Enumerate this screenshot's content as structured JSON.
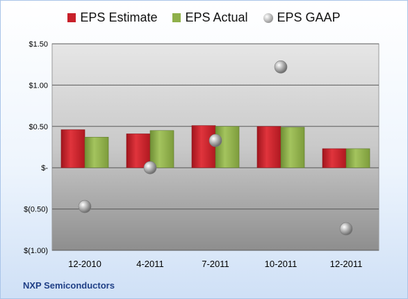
{
  "chart_data": {
    "type": "bar",
    "categories": [
      "12-2010",
      "4-2011",
      "7-2011",
      "10-2011",
      "12-2011"
    ],
    "series": [
      {
        "name": "EPS Estimate",
        "kind": "bar",
        "color": "#c8202a",
        "values": [
          0.46,
          0.41,
          0.51,
          0.5,
          0.23
        ]
      },
      {
        "name": "EPS Actual",
        "kind": "bar",
        "color": "#8fb04a",
        "values": [
          0.37,
          0.45,
          0.5,
          0.49,
          0.23
        ]
      },
      {
        "name": "EPS GAAP",
        "kind": "point",
        "color": "#a8a8a8",
        "values": [
          -0.47,
          0.0,
          0.33,
          1.22,
          -0.74
        ]
      }
    ],
    "yticks": [
      {
        "value": 1.5,
        "label": "$1.50"
      },
      {
        "value": 1.0,
        "label": "$1.00"
      },
      {
        "value": 0.5,
        "label": "$0.50"
      },
      {
        "value": 0.0,
        "label": "$-"
      },
      {
        "value": -0.5,
        "label": "$(0.50)"
      },
      {
        "value": -1.0,
        "label": "$(1.00)"
      }
    ],
    "ylim": [
      -1.0,
      1.5
    ],
    "grid": true,
    "legend": "top-center"
  },
  "legend": {
    "items": [
      {
        "label": "EPS Estimate",
        "color": "#c8202a",
        "shape": "square"
      },
      {
        "label": "EPS Actual",
        "color": "#8fb04a",
        "shape": "square"
      },
      {
        "label": "EPS GAAP",
        "color": "#a8a8a8",
        "shape": "circle"
      }
    ]
  },
  "company": "NXP Semiconductors"
}
